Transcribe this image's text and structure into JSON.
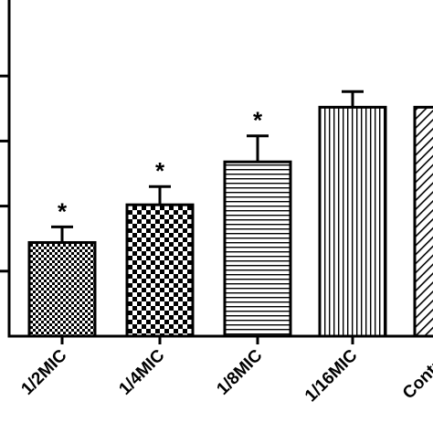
{
  "chart_data": {
    "type": "bar",
    "categories": [
      "1/2MIC",
      "1/4MIC",
      "1/8MIC",
      "1/16MIC",
      "Control"
    ],
    "values": [
      36,
      50.5,
      67,
      88,
      88
    ],
    "errors": [
      6,
      7,
      10,
      6,
      0
    ],
    "significance": [
      "*",
      "*",
      "*",
      "",
      ""
    ],
    "patterns": [
      "fine-checker",
      "coarse-checker",
      "horizontal-lines",
      "vertical-lines",
      "diagonal-lines"
    ],
    "title": "",
    "xlabel": "",
    "ylabel": "",
    "ylim": [
      0,
      125
    ],
    "grid": false,
    "legend": "none",
    "colors": {
      "bar_stroke": "#000000",
      "pattern": "#000000",
      "background": "#ffffff"
    }
  }
}
